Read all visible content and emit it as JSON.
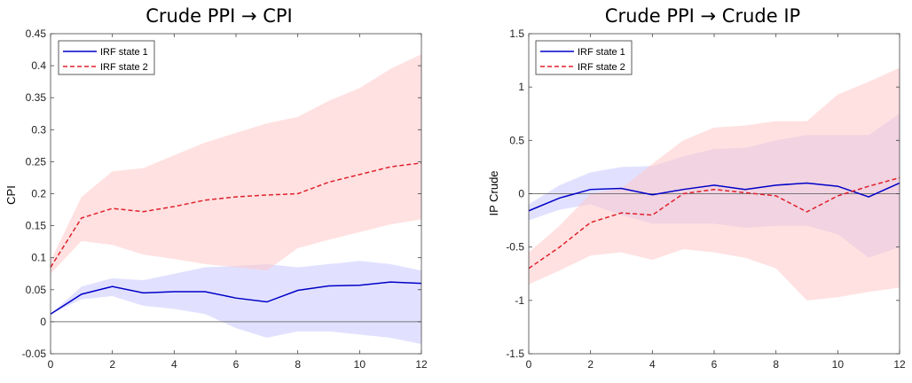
{
  "chart_data": [
    {
      "type": "line",
      "title": "Crude PPI → CPI",
      "xlabel": "",
      "ylabel": "CPI",
      "xlim": [
        0,
        12
      ],
      "ylim": [
        -0.05,
        0.45
      ],
      "xticks": [
        "0",
        "2",
        "4",
        "6",
        "8",
        "10",
        "12"
      ],
      "yticks": [
        "-0.05",
        "0",
        "0.05",
        "0.1",
        "0.15",
        "0.2",
        "0.25",
        "0.3",
        "0.35",
        "0.4",
        "0.45"
      ],
      "zero_line": true,
      "legend_position": "top-left",
      "x": [
        0,
        1,
        2,
        3,
        4,
        5,
        6,
        7,
        8,
        9,
        10,
        11,
        12
      ],
      "series": [
        {
          "name": "IRF state 1",
          "color": "#0000c8",
          "style": "solid",
          "band_color": "#c8c8ff",
          "values": [
            0.012,
            0.043,
            0.055,
            0.045,
            0.047,
            0.047,
            0.037,
            0.031,
            0.049,
            0.056,
            0.057,
            0.062,
            0.06
          ],
          "lower": [
            0.012,
            0.035,
            0.04,
            0.025,
            0.02,
            0.012,
            -0.01,
            -0.025,
            -0.015,
            -0.015,
            -0.02,
            -0.025,
            -0.035
          ],
          "upper": [
            0.012,
            0.055,
            0.068,
            0.065,
            0.075,
            0.085,
            0.087,
            0.09,
            0.085,
            0.09,
            0.095,
            0.09,
            0.08
          ]
        },
        {
          "name": "IRF state 2",
          "color": "#e0202c",
          "style": "dashed",
          "band_color": "#ffc8c8",
          "values": [
            0.085,
            0.162,
            0.177,
            0.172,
            0.18,
            0.19,
            0.195,
            0.198,
            0.2,
            0.218,
            0.23,
            0.242,
            0.248
          ],
          "lower": [
            0.075,
            0.126,
            0.12,
            0.105,
            0.098,
            0.09,
            0.085,
            0.08,
            0.115,
            0.128,
            0.14,
            0.152,
            0.16
          ],
          "upper": [
            0.095,
            0.195,
            0.235,
            0.24,
            0.26,
            0.28,
            0.295,
            0.31,
            0.32,
            0.345,
            0.365,
            0.395,
            0.418
          ]
        }
      ]
    },
    {
      "type": "line",
      "title": "Crude PPI → Crude IP",
      "xlabel": "",
      "ylabel": "IP Crude",
      "xlim": [
        0,
        12
      ],
      "ylim": [
        -1.5,
        1.5
      ],
      "xticks": [
        "0",
        "2",
        "4",
        "6",
        "8",
        "10",
        "12"
      ],
      "yticks": [
        "-1.5",
        "-1",
        "-0.5",
        "0",
        "0.5",
        "1",
        "1.5"
      ],
      "zero_line": true,
      "legend_position": "top-left",
      "x": [
        0,
        1,
        2,
        3,
        4,
        5,
        6,
        7,
        8,
        9,
        10,
        11,
        12
      ],
      "series": [
        {
          "name": "IRF state 1",
          "color": "#0000c8",
          "style": "solid",
          "band_color": "#c8c8ff",
          "values": [
            -0.16,
            -0.04,
            0.04,
            0.05,
            -0.01,
            0.04,
            0.08,
            0.04,
            0.08,
            0.1,
            0.07,
            -0.03,
            0.1
          ],
          "lower": [
            -0.25,
            -0.15,
            -0.1,
            -0.2,
            -0.28,
            -0.28,
            -0.28,
            -0.32,
            -0.3,
            -0.3,
            -0.38,
            -0.6,
            -0.5
          ],
          "upper": [
            -0.1,
            0.08,
            0.2,
            0.25,
            0.26,
            0.35,
            0.42,
            0.43,
            0.5,
            0.55,
            0.55,
            0.55,
            0.75
          ]
        },
        {
          "name": "IRF state 2",
          "color": "#e0202c",
          "style": "dashed",
          "band_color": "#ffc8c8",
          "values": [
            -0.7,
            -0.5,
            -0.27,
            -0.18,
            -0.2,
            0.0,
            0.04,
            0.01,
            -0.02,
            -0.17,
            -0.02,
            0.07,
            0.15
          ],
          "lower": [
            -0.85,
            -0.72,
            -0.58,
            -0.55,
            -0.62,
            -0.52,
            -0.55,
            -0.6,
            -0.7,
            -1.0,
            -0.97,
            -0.92,
            -0.88
          ],
          "upper": [
            -0.55,
            -0.3,
            0.0,
            0.05,
            0.28,
            0.5,
            0.62,
            0.64,
            0.68,
            0.68,
            0.93,
            1.05,
            1.18
          ]
        }
      ]
    }
  ]
}
